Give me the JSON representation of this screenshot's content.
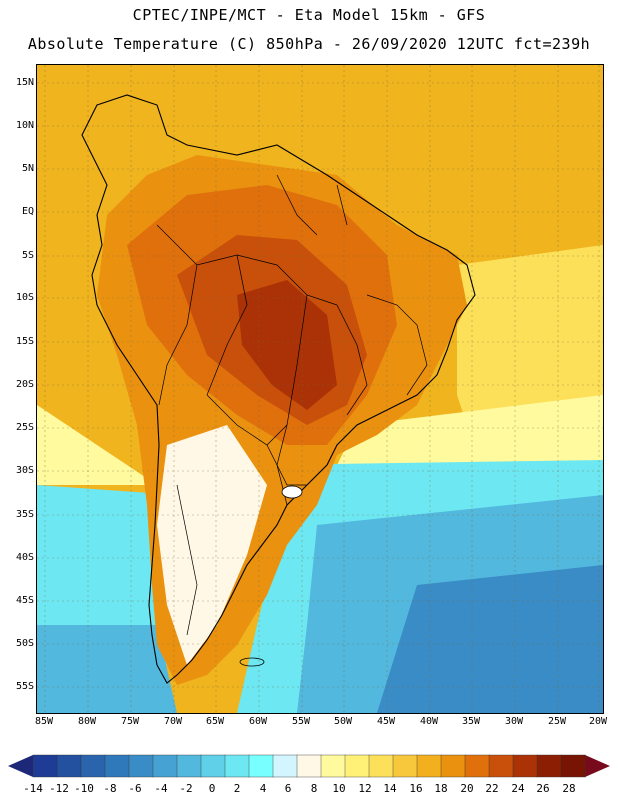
{
  "header": {
    "line1": "CPTEC/INPE/MCT -  Eta Model 15km - GFS",
    "line2": "Absolute Temperature (C) 850hPa - 26/09/2020 12UTC fct=239h"
  },
  "axes": {
    "lat_labels": [
      "15N",
      "10N",
      "5N",
      "EQ",
      "5S",
      "10S",
      "15S",
      "20S",
      "25S",
      "30S",
      "35S",
      "40S",
      "45S",
      "50S",
      "55S"
    ],
    "lon_labels": [
      "85W",
      "80W",
      "75W",
      "70W",
      "65W",
      "60W",
      "55W",
      "50W",
      "45W",
      "40W",
      "35W",
      "30W",
      "25W",
      "20W"
    ]
  },
  "colorbar": {
    "labels": [
      "-14",
      "-12",
      "-10",
      "-8",
      "-6",
      "-4",
      "-2",
      "0",
      "2",
      "4",
      "6",
      "8",
      "10",
      "12",
      "14",
      "16",
      "18",
      "20",
      "22",
      "24",
      "26",
      "28"
    ],
    "colors": [
      "#1e3c96",
      "#23509f",
      "#2a64ad",
      "#2f78ba",
      "#3a8cc6",
      "#46a2d3",
      "#52b8de",
      "#5fd0e8",
      "#6de8f2",
      "#78ffff",
      "#d2f5ff",
      "#fff8e6",
      "#fffa9e",
      "#fff078",
      "#fde05a",
      "#f8c83c",
      "#f2b01e",
      "#ea9210",
      "#e0700c",
      "#c8500a",
      "#aa3206",
      "#8c1e04",
      "#781404"
    ],
    "left_arrow_color": "#1e2878",
    "right_arrow_color": "#780a1e"
  },
  "map_colors": {
    "ocean_warm": "#f0b41e",
    "ocean_mid": "#fde05a",
    "ocean_cool": "#fffa9e",
    "ocean_cold": "#6de8f2",
    "ocean_colder": "#52b8de",
    "ocean_coldest": "#3a8cc6",
    "land_hot": "#c8500a",
    "land_hotter": "#aa3206",
    "land_warm": "#e0700c",
    "land_mild": "#ea9210",
    "land_cool": "#fff8e6"
  }
}
